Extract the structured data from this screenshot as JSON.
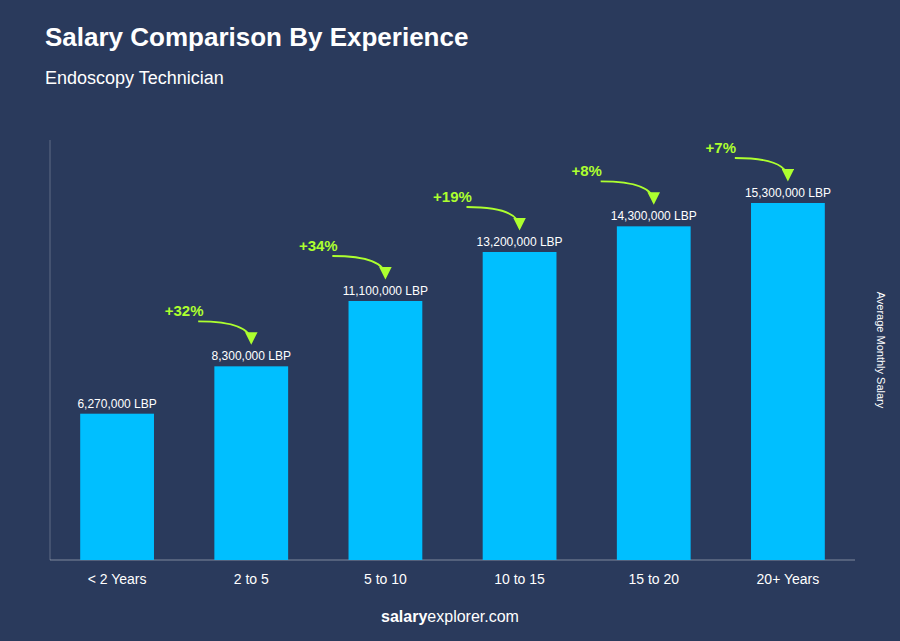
{
  "chart_data": {
    "type": "bar",
    "title": "Salary Comparison By Experience",
    "subtitle": "Endoscopy Technician",
    "y_label": "Average Monthly Salary",
    "categories": [
      "< 2 Years",
      "2 to 5",
      "5 to 10",
      "10 to 15",
      "15 to 20",
      "20+ Years"
    ],
    "values": [
      6270000,
      8300000,
      11100000,
      13200000,
      14300000,
      15300000
    ],
    "value_labels": [
      "6,270,000 LBP",
      "8,300,000 LBP",
      "11,100,000 LBP",
      "13,200,000 LBP",
      "14,300,000 LBP",
      "15,300,000 LBP"
    ],
    "data_labels": true,
    "annotations": [
      "+32%",
      "+34%",
      "+19%",
      "+8%",
      "+7%"
    ],
    "watermark": [
      "salary",
      "explorer.com"
    ],
    "color": "#00BFFF",
    "ylim": [
      0,
      18000000
    ],
    "tick_labels": "x",
    "grid": false
  }
}
